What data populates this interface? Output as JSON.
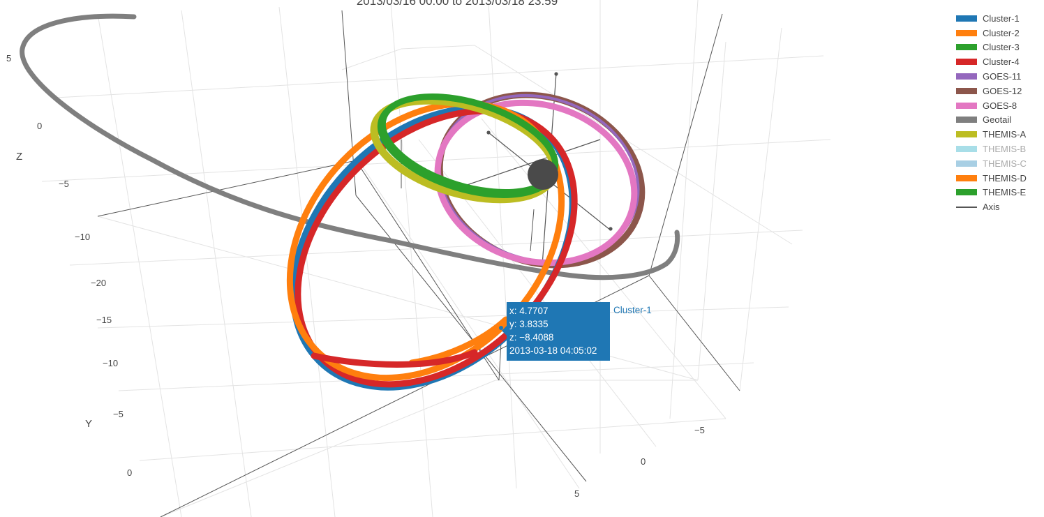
{
  "chart": {
    "title": "2013/03/16 00:00 to 2013/03/18 23:59"
  },
  "tooltip": {
    "series": "Cluster-1",
    "x_line": "x: 4.7707",
    "y_line": "y: 3.8335",
    "z_line": "z: −8.4088",
    "time_line": "2013-03-18 04:05:02"
  },
  "chart_data": {
    "type": "scatter3d",
    "title": "2013/03/16 00:00 to 2013/03/18 23:59",
    "axes": {
      "x": {
        "label": "",
        "tick_labels": [
          "5",
          "0",
          "−5"
        ]
      },
      "y": {
        "label": "Y",
        "tick_labels": [
          "0",
          "−5",
          "−10",
          "−15",
          "−20"
        ]
      },
      "z": {
        "label": "Z",
        "tick_labels": [
          "5",
          "0",
          "−5",
          "−10"
        ]
      }
    },
    "legend_position": "top-right",
    "series": [
      {
        "name": "Cluster-1",
        "color": "#1f77b4"
      },
      {
        "name": "Cluster-2",
        "color": "#ff7f0e"
      },
      {
        "name": "Cluster-3",
        "color": "#2ca02c"
      },
      {
        "name": "Cluster-4",
        "color": "#d62728"
      },
      {
        "name": "GOES-11",
        "color": "#9467bd"
      },
      {
        "name": "GOES-12",
        "color": "#8c564b"
      },
      {
        "name": "GOES-8",
        "color": "#e377c2"
      },
      {
        "name": "Geotail",
        "color": "#7f7f7f"
      },
      {
        "name": "THEMIS-A",
        "color": "#bcbd22"
      },
      {
        "name": "THEMIS-B",
        "color": "#9edae5",
        "hidden": true
      },
      {
        "name": "THEMIS-C",
        "color": "#9ecae1",
        "hidden": true
      },
      {
        "name": "THEMIS-D",
        "color": "#ff7f0e"
      },
      {
        "name": "THEMIS-E",
        "color": "#2ca02c"
      },
      {
        "name": "Axis",
        "color": "#555555",
        "line": true
      }
    ],
    "hover_point": {
      "series": "Cluster-1",
      "x": 4.7707,
      "y": 3.8335,
      "z": -8.4088,
      "time": "2013-03-18 04:05:02"
    }
  }
}
